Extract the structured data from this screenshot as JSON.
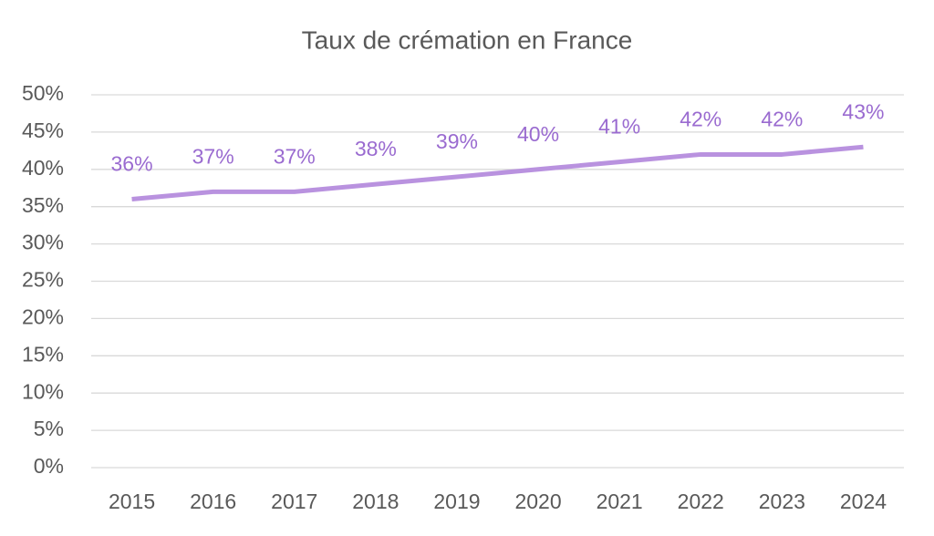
{
  "chart_data": {
    "type": "line",
    "title": "Taux de crémation en France",
    "categories": [
      "2015",
      "2016",
      "2017",
      "2018",
      "2019",
      "2020",
      "2021",
      "2022",
      "2023",
      "2024"
    ],
    "series": [
      {
        "color": "#b992df",
        "label_color": "#9a6bd0",
        "values": [
          36,
          37,
          37,
          38,
          39,
          40,
          41,
          42,
          42,
          43
        ],
        "value_labels": [
          "36%",
          "37%",
          "37%",
          "38%",
          "39%",
          "40%",
          "41%",
          "42%",
          "42%",
          "43%"
        ]
      }
    ],
    "ylim": [
      0,
      50
    ],
    "yticks": [
      {
        "value": 0,
        "label": "0%"
      },
      {
        "value": 5,
        "label": "5%"
      },
      {
        "value": 10,
        "label": "10%"
      },
      {
        "value": 15,
        "label": "15%"
      },
      {
        "value": 20,
        "label": "20%"
      },
      {
        "value": 25,
        "label": "25%"
      },
      {
        "value": 30,
        "label": "30%"
      },
      {
        "value": 35,
        "label": "35%"
      },
      {
        "value": 40,
        "label": "40%"
      },
      {
        "value": 45,
        "label": "45%"
      },
      {
        "value": 50,
        "label": "50%"
      }
    ],
    "grid": true
  }
}
